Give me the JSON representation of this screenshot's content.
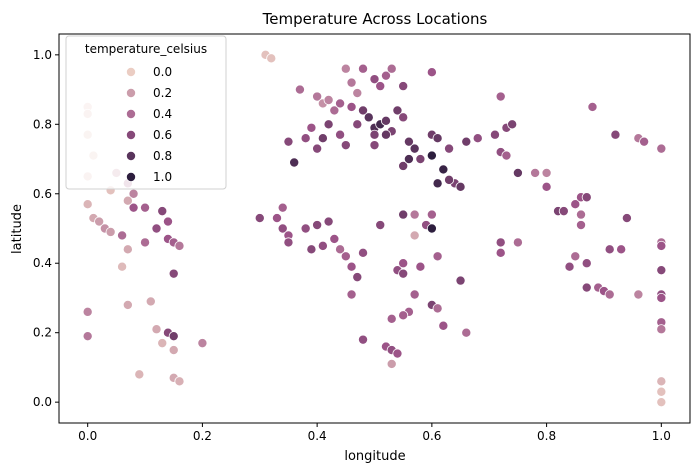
{
  "chart_data": {
    "type": "scatter",
    "title": "Temperature Across Locations",
    "xlabel": "longitude",
    "ylabel": "latitude",
    "xlim": [
      -0.05,
      1.05
    ],
    "ylim": [
      -0.06,
      1.06
    ],
    "xticks": [
      "0.0",
      "0.2",
      "0.4",
      "0.6",
      "0.8",
      "1.0"
    ],
    "yticks": [
      "0.0",
      "0.2",
      "0.4",
      "0.6",
      "0.8",
      "1.0"
    ],
    "grid": false,
    "legend": {
      "title": "temperature_celsius",
      "placement": "upper-left",
      "entries": [
        "0.0",
        "0.2",
        "0.4",
        "0.6",
        "0.8",
        "1.0"
      ]
    },
    "color_scale": {
      "variable": "temperature_celsius",
      "low": "#ebcdc3",
      "mid": "#9c5488",
      "high": "#2d1e3e"
    },
    "points": [
      {
        "x": 0.31,
        "y": 1.0,
        "t": 0.05
      },
      {
        "x": 0.32,
        "y": 0.99,
        "t": 0.05
      },
      {
        "x": 0.0,
        "y": 0.85,
        "t": 0.02
      },
      {
        "x": 0.0,
        "y": 0.83,
        "t": 0.05
      },
      {
        "x": 0.0,
        "y": 0.77,
        "t": 0.03
      },
      {
        "x": 0.01,
        "y": 0.71,
        "t": 0.03
      },
      {
        "x": 0.0,
        "y": 0.65,
        "t": 0.05
      },
      {
        "x": 0.04,
        "y": 0.61,
        "t": 0.05
      },
      {
        "x": 0.0,
        "y": 0.57,
        "t": 0.1
      },
      {
        "x": 0.01,
        "y": 0.53,
        "t": 0.15
      },
      {
        "x": 0.02,
        "y": 0.52,
        "t": 0.2
      },
      {
        "x": 0.03,
        "y": 0.5,
        "t": 0.25
      },
      {
        "x": 0.04,
        "y": 0.49,
        "t": 0.2
      },
      {
        "x": 0.06,
        "y": 0.48,
        "t": 0.4
      },
      {
        "x": 0.07,
        "y": 0.44,
        "t": 0.15
      },
      {
        "x": 0.06,
        "y": 0.39,
        "t": 0.08
      },
      {
        "x": 0.07,
        "y": 0.28,
        "t": 0.15
      },
      {
        "x": 0.0,
        "y": 0.26,
        "t": 0.3
      },
      {
        "x": 0.0,
        "y": 0.19,
        "t": 0.35
      },
      {
        "x": 0.09,
        "y": 0.08,
        "t": 0.1
      },
      {
        "x": 0.11,
        "y": 0.29,
        "t": 0.15
      },
      {
        "x": 0.12,
        "y": 0.21,
        "t": 0.15
      },
      {
        "x": 0.14,
        "y": 0.2,
        "t": 0.6
      },
      {
        "x": 0.15,
        "y": 0.19,
        "t": 0.7
      },
      {
        "x": 0.13,
        "y": 0.17,
        "t": 0.1
      },
      {
        "x": 0.15,
        "y": 0.15,
        "t": 0.15
      },
      {
        "x": 0.15,
        "y": 0.07,
        "t": 0.15
      },
      {
        "x": 0.16,
        "y": 0.06,
        "t": 0.12
      },
      {
        "x": 0.2,
        "y": 0.17,
        "t": 0.3
      },
      {
        "x": 0.08,
        "y": 0.56,
        "t": 0.5
      },
      {
        "x": 0.1,
        "y": 0.56,
        "t": 0.45
      },
      {
        "x": 0.12,
        "y": 0.5,
        "t": 0.55
      },
      {
        "x": 0.13,
        "y": 0.55,
        "t": 0.6
      },
      {
        "x": 0.14,
        "y": 0.52,
        "t": 0.5
      },
      {
        "x": 0.14,
        "y": 0.47,
        "t": 0.5
      },
      {
        "x": 0.15,
        "y": 0.46,
        "t": 0.45
      },
      {
        "x": 0.16,
        "y": 0.45,
        "t": 0.35
      },
      {
        "x": 0.15,
        "y": 0.37,
        "t": 0.6
      },
      {
        "x": 0.1,
        "y": 0.46,
        "t": 0.4
      },
      {
        "x": 0.05,
        "y": 0.66,
        "t": 0.2
      },
      {
        "x": 0.07,
        "y": 0.63,
        "t": 0.35
      },
      {
        "x": 0.08,
        "y": 0.6,
        "t": 0.3
      },
      {
        "x": 0.07,
        "y": 0.58,
        "t": 0.15
      },
      {
        "x": 0.37,
        "y": 0.9,
        "t": 0.4
      },
      {
        "x": 0.4,
        "y": 0.88,
        "t": 0.35
      },
      {
        "x": 0.41,
        "y": 0.86,
        "t": 0.25
      },
      {
        "x": 0.42,
        "y": 0.87,
        "t": 0.3
      },
      {
        "x": 0.43,
        "y": 0.84,
        "t": 0.4
      },
      {
        "x": 0.44,
        "y": 0.86,
        "t": 0.45
      },
      {
        "x": 0.45,
        "y": 0.96,
        "t": 0.3
      },
      {
        "x": 0.46,
        "y": 0.92,
        "t": 0.35
      },
      {
        "x": 0.47,
        "y": 0.89,
        "t": 0.3
      },
      {
        "x": 0.48,
        "y": 0.96,
        "t": 0.45
      },
      {
        "x": 0.5,
        "y": 0.93,
        "t": 0.55
      },
      {
        "x": 0.51,
        "y": 0.91,
        "t": 0.5
      },
      {
        "x": 0.52,
        "y": 0.94,
        "t": 0.45
      },
      {
        "x": 0.53,
        "y": 0.96,
        "t": 0.4
      },
      {
        "x": 0.55,
        "y": 0.91,
        "t": 0.6
      },
      {
        "x": 0.6,
        "y": 0.95,
        "t": 0.5
      },
      {
        "x": 0.46,
        "y": 0.85,
        "t": 0.5
      },
      {
        "x": 0.47,
        "y": 0.8,
        "t": 0.6
      },
      {
        "x": 0.48,
        "y": 0.84,
        "t": 0.7
      },
      {
        "x": 0.49,
        "y": 0.82,
        "t": 0.8
      },
      {
        "x": 0.5,
        "y": 0.79,
        "t": 0.85
      },
      {
        "x": 0.51,
        "y": 0.8,
        "t": 0.9
      },
      {
        "x": 0.52,
        "y": 0.81,
        "t": 0.75
      },
      {
        "x": 0.53,
        "y": 0.78,
        "t": 0.65
      },
      {
        "x": 0.54,
        "y": 0.84,
        "t": 0.7
      },
      {
        "x": 0.55,
        "y": 0.82,
        "t": 0.6
      },
      {
        "x": 0.56,
        "y": 0.75,
        "t": 0.75
      },
      {
        "x": 0.57,
        "y": 0.73,
        "t": 0.8
      },
      {
        "x": 0.55,
        "y": 0.68,
        "t": 0.7
      },
      {
        "x": 0.56,
        "y": 0.7,
        "t": 0.85
      },
      {
        "x": 0.58,
        "y": 0.7,
        "t": 0.65
      },
      {
        "x": 0.6,
        "y": 0.71,
        "t": 1.0
      },
      {
        "x": 0.6,
        "y": 0.77,
        "t": 0.7
      },
      {
        "x": 0.61,
        "y": 0.76,
        "t": 0.75
      },
      {
        "x": 0.61,
        "y": 0.63,
        "t": 0.9
      },
      {
        "x": 0.62,
        "y": 0.67,
        "t": 0.95
      },
      {
        "x": 0.63,
        "y": 0.73,
        "t": 0.6
      },
      {
        "x": 0.64,
        "y": 0.63,
        "t": 0.65
      },
      {
        "x": 0.63,
        "y": 0.64,
        "t": 0.7
      },
      {
        "x": 0.65,
        "y": 0.62,
        "t": 0.75
      },
      {
        "x": 0.66,
        "y": 0.75,
        "t": 0.7
      },
      {
        "x": 0.68,
        "y": 0.76,
        "t": 0.55
      },
      {
        "x": 0.35,
        "y": 0.75,
        "t": 0.6
      },
      {
        "x": 0.36,
        "y": 0.69,
        "t": 0.85
      },
      {
        "x": 0.38,
        "y": 0.76,
        "t": 0.55
      },
      {
        "x": 0.39,
        "y": 0.79,
        "t": 0.5
      },
      {
        "x": 0.4,
        "y": 0.73,
        "t": 0.6
      },
      {
        "x": 0.41,
        "y": 0.76,
        "t": 0.7
      },
      {
        "x": 0.42,
        "y": 0.8,
        "t": 0.65
      },
      {
        "x": 0.44,
        "y": 0.77,
        "t": 0.55
      },
      {
        "x": 0.45,
        "y": 0.74,
        "t": 0.6
      },
      {
        "x": 0.5,
        "y": 0.77,
        "t": 0.65
      },
      {
        "x": 0.5,
        "y": 0.74,
        "t": 0.6
      },
      {
        "x": 0.52,
        "y": 0.77,
        "t": 0.75
      },
      {
        "x": 0.71,
        "y": 0.77,
        "t": 0.6
      },
      {
        "x": 0.72,
        "y": 0.72,
        "t": 0.55
      },
      {
        "x": 0.73,
        "y": 0.79,
        "t": 0.6
      },
      {
        "x": 0.74,
        "y": 0.8,
        "t": 0.65
      },
      {
        "x": 0.75,
        "y": 0.66,
        "t": 0.75
      },
      {
        "x": 0.72,
        "y": 0.88,
        "t": 0.45
      },
      {
        "x": 0.73,
        "y": 0.71,
        "t": 0.45
      },
      {
        "x": 0.3,
        "y": 0.53,
        "t": 0.6
      },
      {
        "x": 0.33,
        "y": 0.53,
        "t": 0.5
      },
      {
        "x": 0.34,
        "y": 0.5,
        "t": 0.55
      },
      {
        "x": 0.34,
        "y": 0.56,
        "t": 0.45
      },
      {
        "x": 0.35,
        "y": 0.48,
        "t": 0.5
      },
      {
        "x": 0.35,
        "y": 0.46,
        "t": 0.55
      },
      {
        "x": 0.38,
        "y": 0.5,
        "t": 0.55
      },
      {
        "x": 0.39,
        "y": 0.44,
        "t": 0.6
      },
      {
        "x": 0.4,
        "y": 0.51,
        "t": 0.6
      },
      {
        "x": 0.41,
        "y": 0.45,
        "t": 0.55
      },
      {
        "x": 0.42,
        "y": 0.52,
        "t": 0.6
      },
      {
        "x": 0.43,
        "y": 0.47,
        "t": 0.5
      },
      {
        "x": 0.44,
        "y": 0.44,
        "t": 0.4
      },
      {
        "x": 0.45,
        "y": 0.42,
        "t": 0.45
      },
      {
        "x": 0.46,
        "y": 0.39,
        "t": 0.5
      },
      {
        "x": 0.46,
        "y": 0.31,
        "t": 0.45
      },
      {
        "x": 0.47,
        "y": 0.36,
        "t": 0.6
      },
      {
        "x": 0.48,
        "y": 0.43,
        "t": 0.55
      },
      {
        "x": 0.48,
        "y": 0.18,
        "t": 0.55
      },
      {
        "x": 0.51,
        "y": 0.51,
        "t": 0.6
      },
      {
        "x": 0.52,
        "y": 0.16,
        "t": 0.5
      },
      {
        "x": 0.53,
        "y": 0.11,
        "t": 0.2
      },
      {
        "x": 0.53,
        "y": 0.24,
        "t": 0.45
      },
      {
        "x": 0.53,
        "y": 0.15,
        "t": 0.55
      },
      {
        "x": 0.54,
        "y": 0.38,
        "t": 0.55
      },
      {
        "x": 0.54,
        "y": 0.14,
        "t": 0.5
      },
      {
        "x": 0.55,
        "y": 0.37,
        "t": 0.6
      },
      {
        "x": 0.55,
        "y": 0.54,
        "t": 0.7
      },
      {
        "x": 0.55,
        "y": 0.4,
        "t": 0.5
      },
      {
        "x": 0.56,
        "y": 0.26,
        "t": 0.45
      },
      {
        "x": 0.57,
        "y": 0.48,
        "t": 0.15
      },
      {
        "x": 0.57,
        "y": 0.54,
        "t": 0.35
      },
      {
        "x": 0.58,
        "y": 0.39,
        "t": 0.5
      },
      {
        "x": 0.59,
        "y": 0.51,
        "t": 0.55
      },
      {
        "x": 0.6,
        "y": 0.5,
        "t": 1.0
      },
      {
        "x": 0.6,
        "y": 0.28,
        "t": 0.65
      },
      {
        "x": 0.6,
        "y": 0.54,
        "t": 0.45
      },
      {
        "x": 0.61,
        "y": 0.42,
        "t": 0.45
      },
      {
        "x": 0.61,
        "y": 0.27,
        "t": 0.4
      },
      {
        "x": 0.62,
        "y": 0.22,
        "t": 0.5
      },
      {
        "x": 0.65,
        "y": 0.35,
        "t": 0.65
      },
      {
        "x": 0.66,
        "y": 0.2,
        "t": 0.4
      },
      {
        "x": 0.57,
        "y": 0.31,
        "t": 0.45
      },
      {
        "x": 0.55,
        "y": 0.25,
        "t": 0.45
      },
      {
        "x": 0.72,
        "y": 0.46,
        "t": 0.55
      },
      {
        "x": 0.72,
        "y": 0.43,
        "t": 0.5
      },
      {
        "x": 0.75,
        "y": 0.46,
        "t": 0.4
      },
      {
        "x": 0.78,
        "y": 0.66,
        "t": 0.35
      },
      {
        "x": 0.8,
        "y": 0.66,
        "t": 0.3
      },
      {
        "x": 0.8,
        "y": 0.62,
        "t": 0.5
      },
      {
        "x": 0.82,
        "y": 0.55,
        "t": 0.65
      },
      {
        "x": 0.83,
        "y": 0.55,
        "t": 0.6
      },
      {
        "x": 0.84,
        "y": 0.39,
        "t": 0.55
      },
      {
        "x": 0.85,
        "y": 0.57,
        "t": 0.5
      },
      {
        "x": 0.85,
        "y": 0.42,
        "t": 0.4
      },
      {
        "x": 0.86,
        "y": 0.54,
        "t": 0.4
      },
      {
        "x": 0.86,
        "y": 0.51,
        "t": 0.45
      },
      {
        "x": 0.86,
        "y": 0.59,
        "t": 0.5
      },
      {
        "x": 0.87,
        "y": 0.59,
        "t": 0.6
      },
      {
        "x": 0.87,
        "y": 0.4,
        "t": 0.55
      },
      {
        "x": 0.87,
        "y": 0.33,
        "t": 0.6
      },
      {
        "x": 0.88,
        "y": 0.85,
        "t": 0.45
      },
      {
        "x": 0.89,
        "y": 0.33,
        "t": 0.45
      },
      {
        "x": 0.9,
        "y": 0.32,
        "t": 0.5
      },
      {
        "x": 0.91,
        "y": 0.44,
        "t": 0.55
      },
      {
        "x": 0.91,
        "y": 0.31,
        "t": 0.4
      },
      {
        "x": 0.92,
        "y": 0.77,
        "t": 0.6
      },
      {
        "x": 0.93,
        "y": 0.44,
        "t": 0.5
      },
      {
        "x": 0.94,
        "y": 0.53,
        "t": 0.6
      },
      {
        "x": 0.96,
        "y": 0.76,
        "t": 0.35
      },
      {
        "x": 0.96,
        "y": 0.31,
        "t": 0.3
      },
      {
        "x": 0.97,
        "y": 0.75,
        "t": 0.45
      },
      {
        "x": 1.0,
        "y": 0.73,
        "t": 0.4
      },
      {
        "x": 1.0,
        "y": 0.46,
        "t": 0.4
      },
      {
        "x": 1.0,
        "y": 0.45,
        "t": 0.5
      },
      {
        "x": 1.0,
        "y": 0.38,
        "t": 0.6
      },
      {
        "x": 1.0,
        "y": 0.31,
        "t": 0.55
      },
      {
        "x": 1.0,
        "y": 0.3,
        "t": 0.5
      },
      {
        "x": 1.0,
        "y": 0.23,
        "t": 0.45
      },
      {
        "x": 1.0,
        "y": 0.21,
        "t": 0.35
      },
      {
        "x": 1.0,
        "y": 0.06,
        "t": 0.1
      },
      {
        "x": 1.0,
        "y": 0.03,
        "t": 0.05
      },
      {
        "x": 1.0,
        "y": 0.0,
        "t": 0.05
      }
    ]
  }
}
